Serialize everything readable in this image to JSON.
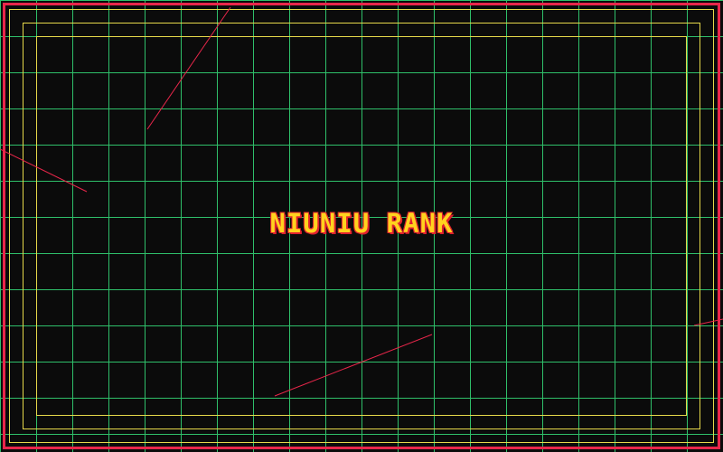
{
  "title": "NIUNIU RANK",
  "colors": {
    "background": "#0b0b0b",
    "grid": "#2fbf6a",
    "frame": "#e8264a",
    "inner_frames": "#e6d84a",
    "title": "#ffd21e",
    "title_outline": "#e0202e",
    "streaks": "#e8264a"
  }
}
